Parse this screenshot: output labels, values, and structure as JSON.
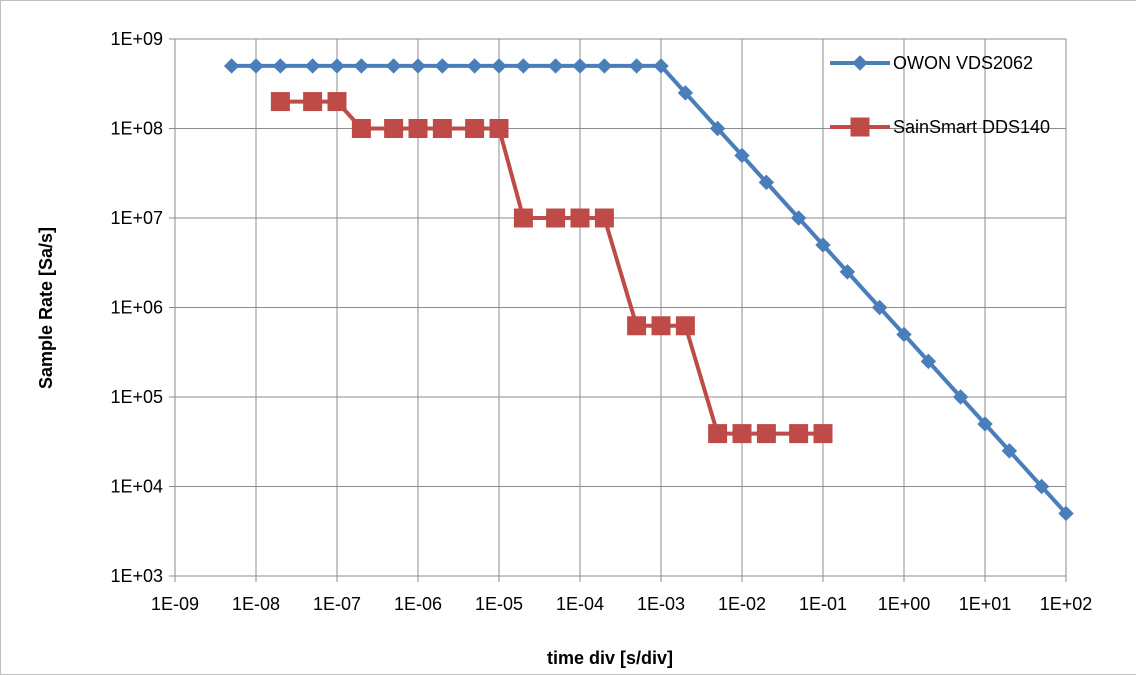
{
  "chart_data": {
    "type": "line",
    "xscale": "log",
    "yscale": "log",
    "xlabel": "time div [s/div]",
    "ylabel": "Sample Rate [Sa/s]",
    "xlim": [
      1e-09,
      100
    ],
    "ylim": [
      1000,
      1000000000
    ],
    "x_tick_labels": [
      "1E-09",
      "1E-08",
      "1E-07",
      "1E-06",
      "1E-05",
      "1E-04",
      "1E-03",
      "1E-02",
      "1E-01",
      "1E+00",
      "1E+01",
      "1E+02"
    ],
    "y_tick_labels": [
      "1E+03",
      "1E+04",
      "1E+05",
      "1E+06",
      "1E+07",
      "1E+08",
      "1E+09"
    ],
    "grid": true,
    "legend_position": "top-right",
    "series": [
      {
        "name": "OWON VDS2062",
        "color": "#4a7ebb",
        "marker": "diamond",
        "x": [
          5e-09,
          1e-08,
          2e-08,
          5e-08,
          1e-07,
          2e-07,
          5e-07,
          1e-06,
          2e-06,
          5e-06,
          1e-05,
          2e-05,
          5e-05,
          0.0001,
          0.0002,
          0.0005,
          0.001,
          0.002,
          0.005,
          0.01,
          0.02,
          0.05,
          0.1,
          0.2,
          0.5,
          1,
          2,
          5,
          10,
          20,
          50,
          100
        ],
        "y": [
          500000000.0,
          500000000.0,
          500000000.0,
          500000000.0,
          500000000.0,
          500000000.0,
          500000000.0,
          500000000.0,
          500000000.0,
          500000000.0,
          500000000.0,
          500000000.0,
          500000000.0,
          500000000.0,
          500000000.0,
          500000000.0,
          500000000.0,
          250000000.0,
          100000000.0,
          50000000.0,
          25000000.0,
          10000000.0,
          5000000.0,
          2500000.0,
          1000000.0,
          500000.0,
          250000.0,
          100000.0,
          50000.0,
          25000.0,
          10000.0,
          5000.0
        ]
      },
      {
        "name": "SainSmart DDS140",
        "color": "#be4b48",
        "marker": "square",
        "x": [
          2e-08,
          5e-08,
          1e-07,
          2e-07,
          5e-07,
          1e-06,
          2e-06,
          5e-06,
          1e-05,
          2e-05,
          5e-05,
          0.0001,
          0.0002,
          0.0005,
          0.001,
          0.002,
          0.005,
          0.01,
          0.02,
          0.05,
          0.1
        ],
        "y": [
          200000000.0,
          200000000.0,
          200000000.0,
          100000000.0,
          100000000.0,
          100000000.0,
          100000000.0,
          100000000.0,
          100000000.0,
          10000000.0,
          10000000.0,
          10000000.0,
          10000000.0,
          625000.0,
          625000.0,
          625000.0,
          39000.0,
          39000.0,
          39000.0,
          39000.0,
          39000.0
        ]
      }
    ]
  }
}
